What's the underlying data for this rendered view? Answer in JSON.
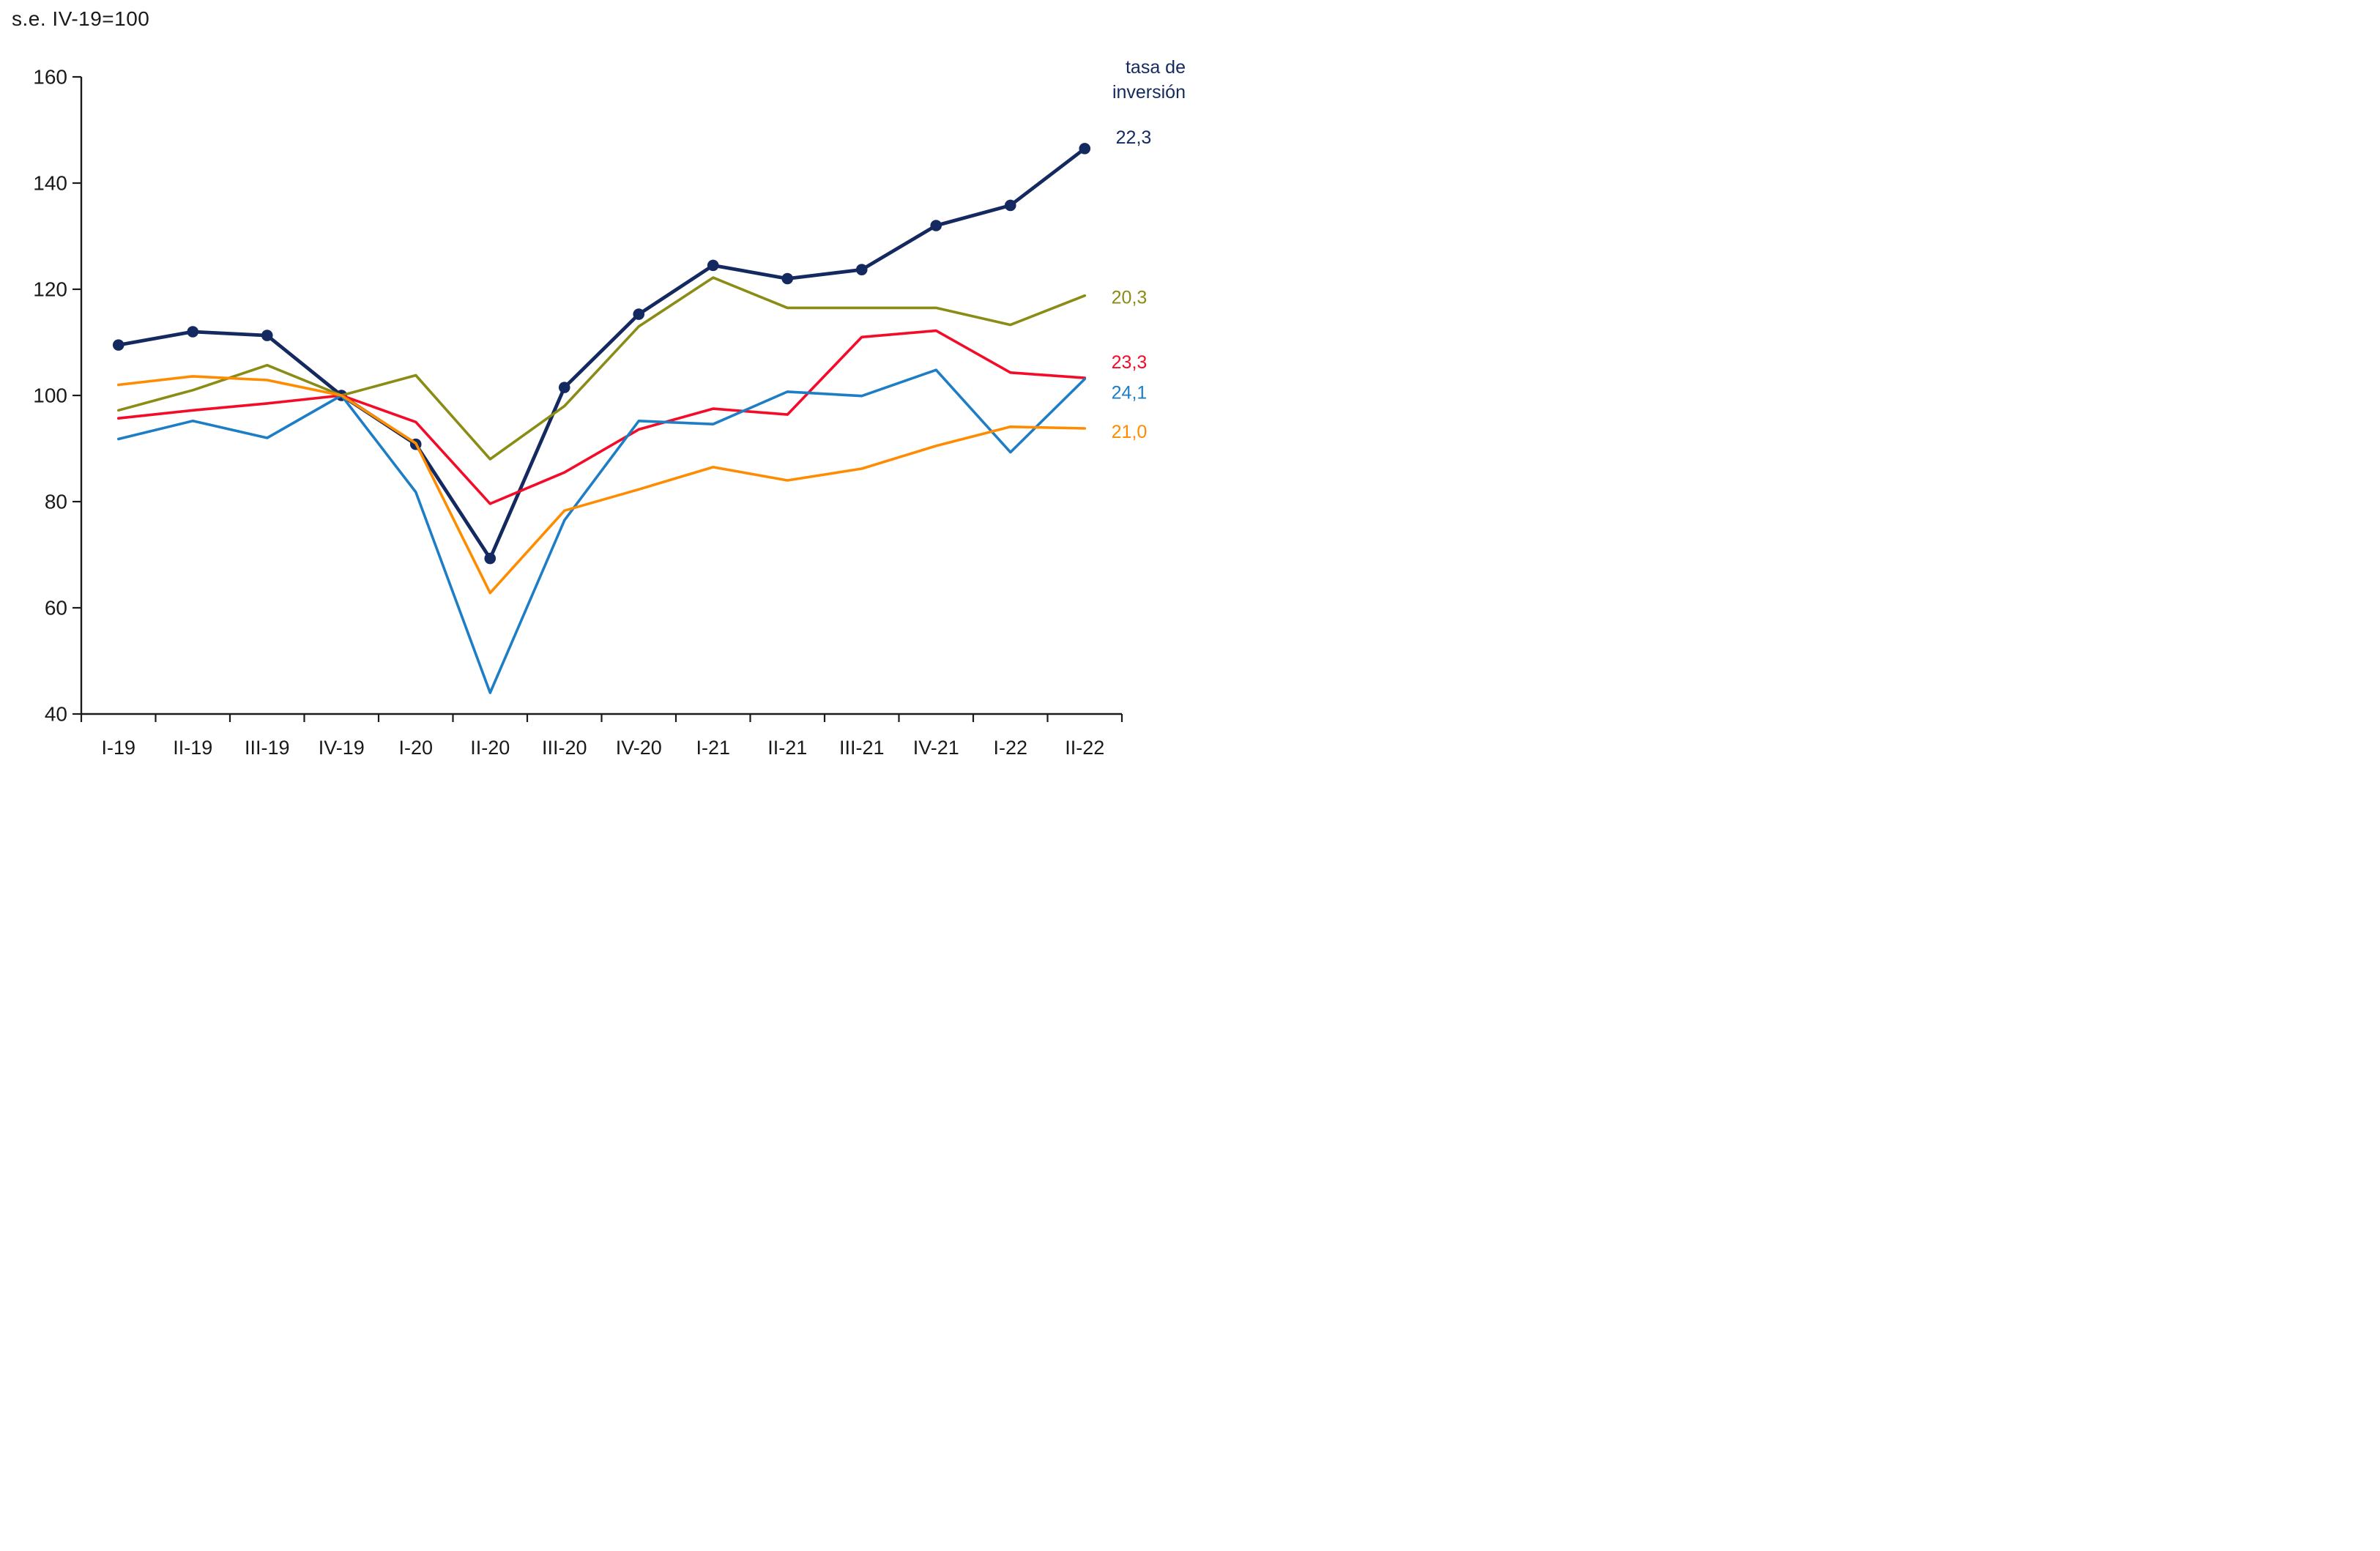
{
  "title": "s.e. IV-19=100",
  "legend": {
    "title_line1": "tasa de",
    "title_line2": "inversión",
    "title_color": "#14295f"
  },
  "chart_data": {
    "type": "line",
    "title": "s.e. IV-19=100",
    "xlabel": "",
    "ylabel": "",
    "ylim": [
      40,
      160
    ],
    "yticks": [
      160,
      140,
      120,
      100,
      80,
      60,
      40
    ],
    "grid": false,
    "legend_position": "right",
    "axis_color": "#1a1a1a",
    "categories": [
      "I-19",
      "II-19",
      "III-19",
      "IV-19",
      "I-20",
      "II-20",
      "III-20",
      "IV-20",
      "I-21",
      "II-21",
      "III-21",
      "IV-21",
      "I-22",
      "II-22"
    ],
    "series": [
      {
        "id": "navy",
        "color": "#14295f",
        "marker": true,
        "end_label": "22,3",
        "values": [
          109.5,
          112.0,
          111.3,
          100.0,
          90.8,
          69.3,
          101.5,
          115.3,
          124.5,
          122.0,
          123.7,
          132.0,
          135.8,
          146.5
        ]
      },
      {
        "id": "olive",
        "color": "#8a8c15",
        "marker": false,
        "end_label": "20,3",
        "values": [
          97.2,
          101.0,
          105.7,
          100.0,
          103.8,
          88.0,
          98.0,
          113.0,
          122.2,
          116.5,
          116.5,
          116.5,
          113.3,
          118.8
        ]
      },
      {
        "id": "red",
        "color": "#f40b28",
        "marker": false,
        "end_label": "23,3",
        "values": [
          95.7,
          97.2,
          98.5,
          100.0,
          95.0,
          79.6,
          85.5,
          93.6,
          97.5,
          96.4,
          111.0,
          112.2,
          104.3,
          103.3
        ]
      },
      {
        "id": "blue",
        "color": "#1d7dc5",
        "marker": false,
        "end_label": "24,1",
        "values": [
          91.8,
          95.2,
          92.0,
          100.0,
          81.8,
          44.0,
          76.5,
          95.2,
          94.6,
          100.7,
          99.9,
          104.8,
          89.3,
          103.1
        ]
      },
      {
        "id": "orange",
        "color": "#ff8c00",
        "marker": false,
        "end_label": "21,0",
        "values": [
          102.0,
          103.6,
          102.9,
          100.0,
          91.0,
          62.8,
          78.3,
          82.3,
          86.5,
          84.0,
          86.2,
          90.5,
          94.1,
          93.8
        ]
      }
    ]
  }
}
